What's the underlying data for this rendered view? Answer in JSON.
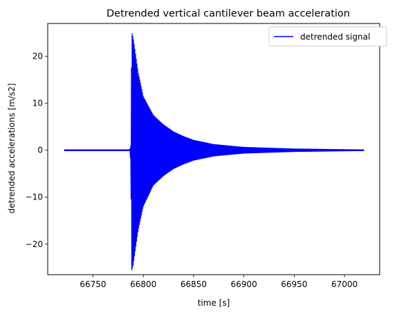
{
  "chart_data": {
    "type": "line",
    "title": "Detrended vertical cantilever beam acceleration",
    "xlabel": "time [s]",
    "ylabel": "detrended accelerations [m/s2]",
    "xlim": [
      66705,
      67035
    ],
    "ylim": [
      -26.5,
      27
    ],
    "x_ticks": [
      66750,
      66800,
      66850,
      66900,
      66950,
      67000
    ],
    "y_ticks": [
      -20,
      -10,
      0,
      10,
      20
    ],
    "grid": false,
    "legend_position": "top-right",
    "series": [
      {
        "name": "detrended signal",
        "color": "#0000ff",
        "time_range": [
          66721.5,
          67019.5
        ],
        "impact_time": 66788,
        "peak_amplitude_upper": 25.2,
        "peak_amplitude_lower": -25.6,
        "envelope": [
          {
            "t": 66721.5,
            "upper": 0.15,
            "lower": -0.15
          },
          {
            "t": 66786.5,
            "upper": 0.15,
            "lower": -0.15
          },
          {
            "t": 66787.5,
            "upper": 1.0,
            "lower": -2.5
          },
          {
            "t": 66788.5,
            "upper": 25.2,
            "lower": -25.6
          },
          {
            "t": 66790,
            "upper": 24.0,
            "lower": -24.5
          },
          {
            "t": 66795,
            "upper": 16.5,
            "lower": -17.0
          },
          {
            "t": 66800,
            "upper": 11.5,
            "lower": -12.0
          },
          {
            "t": 66810,
            "upper": 7.5,
            "lower": -7.5
          },
          {
            "t": 66820,
            "upper": 5.5,
            "lower": -5.5
          },
          {
            "t": 66830,
            "upper": 4.0,
            "lower": -4.0
          },
          {
            "t": 66840,
            "upper": 3.0,
            "lower": -3.0
          },
          {
            "t": 66850,
            "upper": 2.2,
            "lower": -2.2
          },
          {
            "t": 66870,
            "upper": 1.3,
            "lower": -1.3
          },
          {
            "t": 66900,
            "upper": 0.7,
            "lower": -0.7
          },
          {
            "t": 66950,
            "upper": 0.35,
            "lower": -0.35
          },
          {
            "t": 67019.5,
            "upper": 0.15,
            "lower": -0.15
          }
        ]
      }
    ]
  }
}
